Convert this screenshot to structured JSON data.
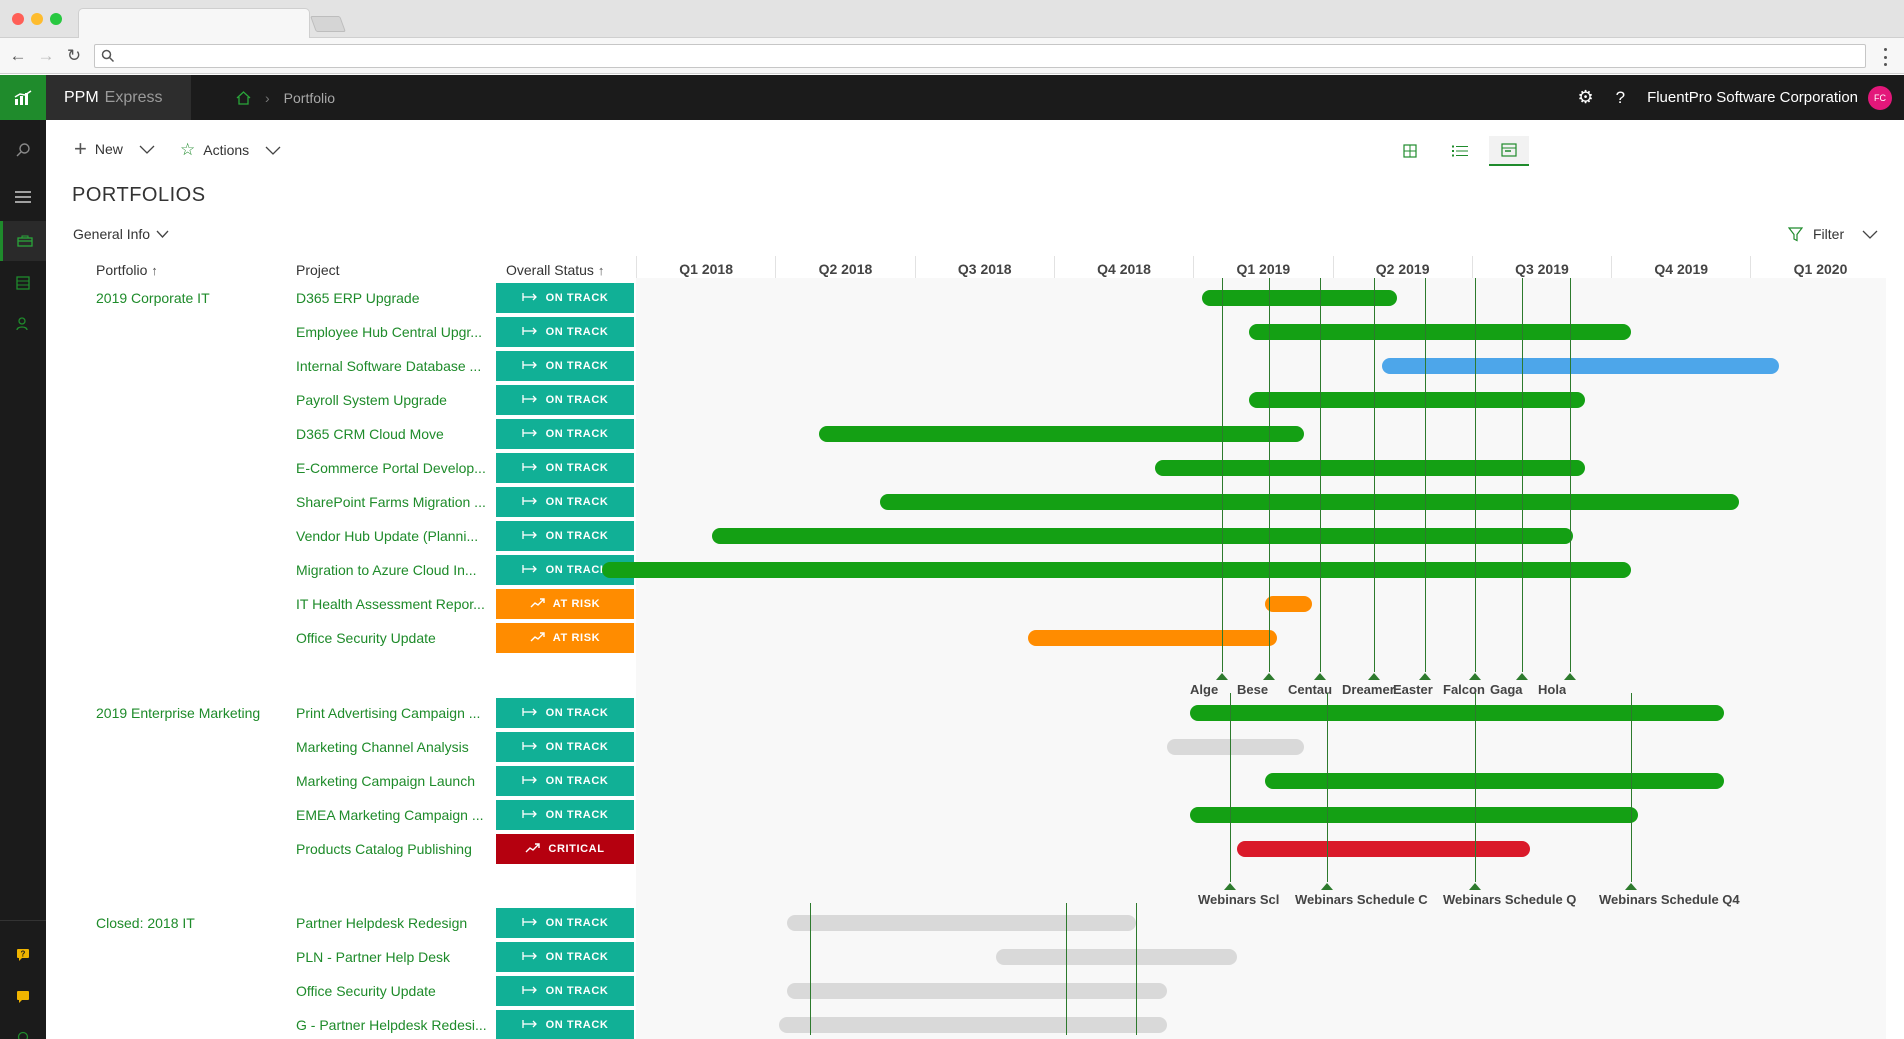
{
  "app": {
    "name": "PPM",
    "name_suffix": "Express",
    "company": "FluentPro Software Corporation",
    "avatar_initials": "FC",
    "accent": "#1f8b2c"
  },
  "breadcrumb": {
    "current": "Portfolio"
  },
  "toolbar": {
    "new_label": "New",
    "actions_label": "Actions",
    "filter_label": "Filter"
  },
  "page": {
    "title": "PORTFOLIOS",
    "view_selector": "General Info"
  },
  "columns": {
    "portfolio": "Portfolio",
    "project": "Project",
    "status": "Overall Status"
  },
  "timeline": {
    "quarters": [
      "Q1 2018",
      "Q2 2018",
      "Q3 2018",
      "Q4 2018",
      "Q1 2019",
      "Q2 2019",
      "Q3 2019",
      "Q4 2019",
      "Q1 2020"
    ]
  },
  "status_styles": {
    "ON TRACK": {
      "color": "#11b096",
      "icon": "arrow-right-icon"
    },
    "AT RISK": {
      "color": "#ff8c00",
      "icon": "trend-up-icon"
    },
    "CRITICAL": {
      "color": "#b5000f",
      "icon": "trend-up-icon"
    }
  },
  "bar_colors": {
    "green": "#14a014",
    "blue": "#4da6ea",
    "orange": "#ff8c00",
    "red": "#da1a2a",
    "gray": "#d9d9d9"
  },
  "portfolios": [
    {
      "name": "2019 Corporate IT",
      "projects": [
        {
          "name": "D365 ERP Upgrade",
          "status": "ON TRACK",
          "start": "2019-01-07",
          "end": "2019-05-15",
          "bar": "green"
        },
        {
          "name": "Employee Hub Central Upgr...",
          "status": "ON TRACK",
          "start": "2019-02-07",
          "end": "2019-10-15",
          "bar": "green"
        },
        {
          "name": "Internal Software Database ...",
          "status": "ON TRACK",
          "start": "2019-05-05",
          "end": "2020-01-20",
          "bar": "blue"
        },
        {
          "name": "Payroll System Upgrade",
          "status": "ON TRACK",
          "start": "2019-02-07",
          "end": "2019-09-15",
          "bar": "green"
        },
        {
          "name": "D365 CRM Cloud Move",
          "status": "ON TRACK",
          "start": "2018-05-01",
          "end": "2019-03-15",
          "bar": "green"
        },
        {
          "name": "E-Commerce Portal Develop...",
          "status": "ON TRACK",
          "start": "2018-12-07",
          "end": "2019-09-15",
          "bar": "green"
        },
        {
          "name": "SharePoint Farms Migration ...",
          "status": "ON TRACK",
          "start": "2018-06-10",
          "end": "2019-12-25",
          "bar": "green"
        },
        {
          "name": "Vendor Hub Update (Planni...",
          "status": "ON TRACK",
          "start": "2018-02-20",
          "end": "2019-09-07",
          "bar": "green"
        },
        {
          "name": "Migration to Azure Cloud In...",
          "status": "ON TRACK",
          "start": "2017-12-10",
          "end": "2019-10-15",
          "bar": "green"
        },
        {
          "name": "IT Health Assessment Repor...",
          "status": "AT RISK",
          "start": "2019-02-17",
          "end": "2019-03-20",
          "bar": "orange"
        },
        {
          "name": "Office Security Update",
          "status": "AT RISK",
          "start": "2018-09-15",
          "end": "2019-02-25",
          "bar": "orange"
        }
      ],
      "milestones": [
        {
          "label": "Alge",
          "date": "2019-01-20"
        },
        {
          "label": "Bese",
          "date": "2019-02-20"
        },
        {
          "label": "Centau",
          "date": "2019-03-25"
        },
        {
          "label": "Dreamer",
          "date": "2019-04-30"
        },
        {
          "label": "Easter",
          "date": "2019-06-02"
        },
        {
          "label": "Falcon",
          "date": "2019-07-05"
        },
        {
          "label": "Gaga",
          "date": "2019-08-05"
        },
        {
          "label": "Hola",
          "date": "2019-09-05"
        }
      ]
    },
    {
      "name": "2019 Enterprise Marketing",
      "projects": [
        {
          "name": "Print Advertising Campaign ...",
          "status": "ON TRACK",
          "start": "2018-12-30",
          "end": "2019-12-15",
          "bar": "green"
        },
        {
          "name": "Marketing Channel Analysis",
          "status": "ON TRACK",
          "start": "2018-12-15",
          "end": "2019-03-15",
          "bar": "gray"
        },
        {
          "name": "Marketing Campaign Launch",
          "status": "ON TRACK",
          "start": "2019-02-17",
          "end": "2019-12-15",
          "bar": "green"
        },
        {
          "name": "EMEA Marketing Campaign ...",
          "status": "ON TRACK",
          "start": "2018-12-30",
          "end": "2019-10-20",
          "bar": "green"
        },
        {
          "name": "Products Catalog Publishing",
          "status": "CRITICAL",
          "start": "2019-01-30",
          "end": "2019-08-10",
          "bar": "red"
        }
      ],
      "milestones": [
        {
          "label": "Webinars Scl",
          "date": "2019-01-25"
        },
        {
          "label": "Webinars Schedule C",
          "date": "2019-03-30"
        },
        {
          "label": "Webinars Schedule Q",
          "date": "2019-07-05"
        },
        {
          "label": "Webinars Schedule Q4",
          "date": "2019-10-15"
        }
      ]
    },
    {
      "name": "Closed: 2018 IT",
      "projects": [
        {
          "name": "Partner Helpdesk Redesign",
          "status": "ON TRACK",
          "start": "2018-04-10",
          "end": "2018-11-25",
          "bar": "gray"
        },
        {
          "name": "PLN - Partner Help Desk",
          "status": "ON TRACK",
          "start": "2018-08-25",
          "end": "2019-01-30",
          "bar": "gray"
        },
        {
          "name": "Office Security Update",
          "status": "ON TRACK",
          "start": "2018-04-10",
          "end": "2018-12-15",
          "bar": "gray"
        },
        {
          "name": "G - Partner Helpdesk Redesi...",
          "status": "ON TRACK",
          "start": "2018-04-05",
          "end": "2018-12-15",
          "bar": "gray"
        }
      ],
      "milestone_dates": [
        "2018-04-25",
        "2018-10-10",
        "2018-11-25"
      ]
    }
  ]
}
